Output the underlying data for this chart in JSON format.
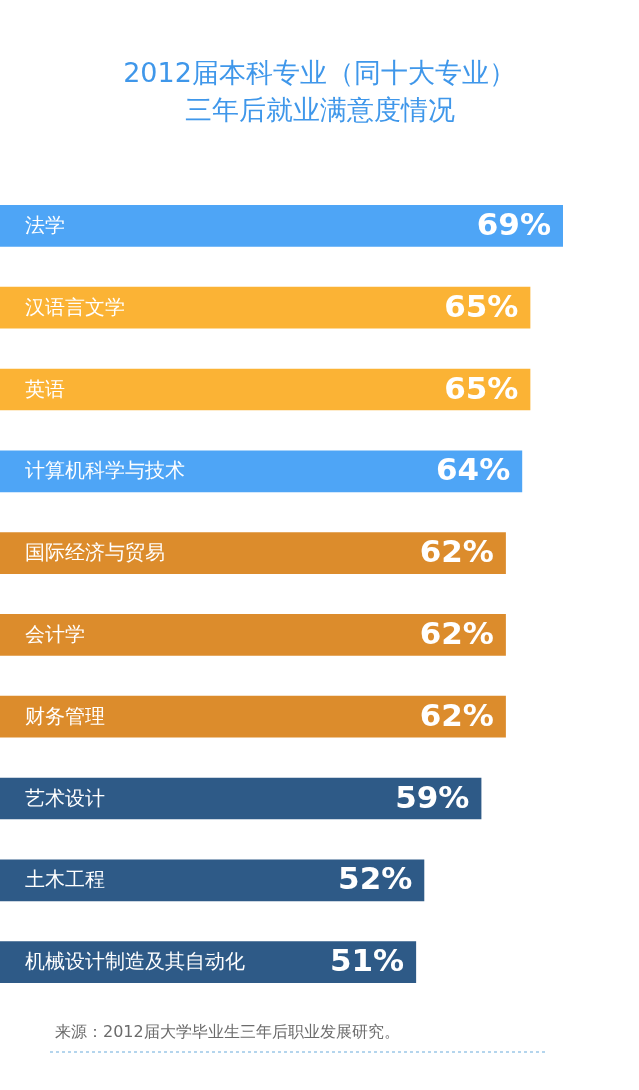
{
  "chart_data": {
    "type": "bar",
    "orientation": "horizontal",
    "title": "2012届本科专业（同十大专业）",
    "subtitle": "三年后就业满意度情况",
    "categories": [
      "法学",
      "汉语言文学",
      "英语",
      "计算机科学与技术",
      "国际经济与贸易",
      "会计学",
      "财务管理",
      "艺术设计",
      "土木工程",
      "机械设计制造及其自动化"
    ],
    "values": [
      69,
      65,
      65,
      64,
      62,
      62,
      62,
      59,
      52,
      51
    ],
    "value_labels": [
      "69%",
      "65%",
      "65%",
      "64%",
      "62%",
      "62%",
      "62%",
      "59%",
      "52%",
      "51%"
    ],
    "colors": [
      "#4ea5f6",
      "#fbb335",
      "#fbb335",
      "#4ea5f6",
      "#dc8c2c",
      "#dc8c2c",
      "#dc8c2c",
      "#2e5a87",
      "#2e5a87",
      "#2e5a87"
    ],
    "annotations": [
      "来源：2012届大学毕业生三年后职业发展研究。"
    ]
  }
}
